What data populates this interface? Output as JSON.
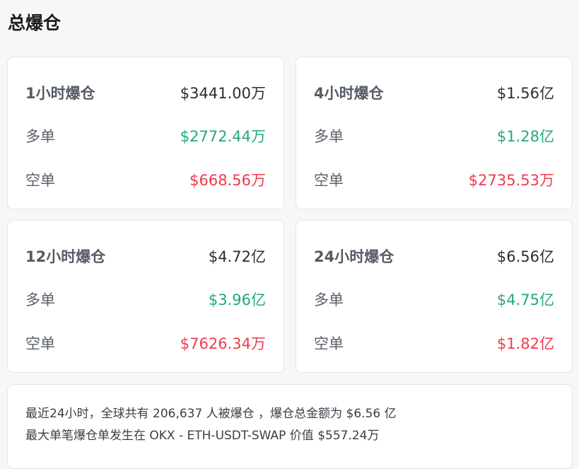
{
  "title": "总爆仓",
  "colors": {
    "long": "#22a884",
    "short": "#ef3a4c"
  },
  "cards": [
    {
      "label": "1小时爆仓",
      "total": "$3441.00万",
      "long_label": "多单",
      "long": "$2772.44万",
      "short_label": "空单",
      "short": "$668.56万"
    },
    {
      "label": "4小时爆仓",
      "total": "$1.56亿",
      "long_label": "多单",
      "long": "$1.28亿",
      "short_label": "空单",
      "short": "$2735.53万"
    },
    {
      "label": "12小时爆仓",
      "total": "$4.72亿",
      "long_label": "多单",
      "long": "$3.96亿",
      "short_label": "空单",
      "short": "$7626.34万"
    },
    {
      "label": "24小时爆仓",
      "total": "$6.56亿",
      "long_label": "多单",
      "long": "$4.75亿",
      "short_label": "空单",
      "short": "$1.82亿"
    }
  ],
  "summary": {
    "line1": "最近24小时，全球共有 206,637 人被爆仓 ，爆仓总金额为 $6.56 亿",
    "line2": "最大单笔爆仓单发生在 OKX - ETH-USDT-SWAP 价值 $557.24万"
  }
}
